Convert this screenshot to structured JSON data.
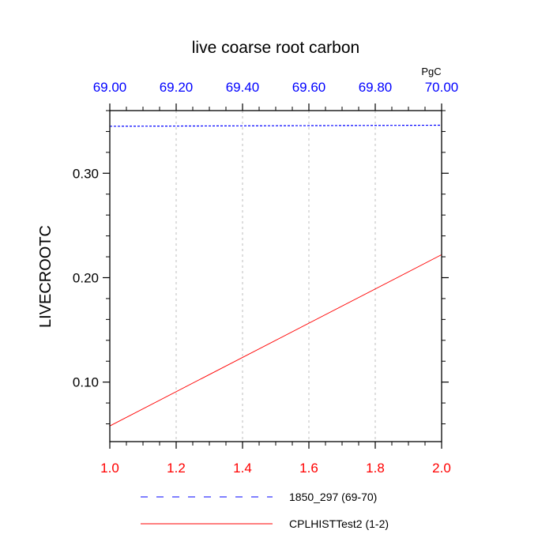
{
  "chart_data": {
    "type": "line",
    "title": "live coarse root carbon",
    "ylabel": "LIVECROOTC",
    "top_axis_units": "PgC",
    "ylim": [
      0.043,
      0.36
    ],
    "bottom_axis": {
      "range": [
        1.0,
        2.0
      ],
      "ticks": [
        1.0,
        1.2,
        1.4,
        1.6,
        1.8,
        2.0
      ],
      "tick_labels": [
        "1.0",
        "1.2",
        "1.4",
        "1.6",
        "1.8",
        "2.0"
      ],
      "color": "#ff0000"
    },
    "top_axis": {
      "range": [
        69.0,
        70.0
      ],
      "ticks": [
        69.0,
        69.2,
        69.4,
        69.6,
        69.8,
        70.0
      ],
      "tick_labels": [
        "69.00",
        "69.20",
        "69.40",
        "69.60",
        "69.80",
        "70.00"
      ],
      "color": "#0000ff"
    },
    "y_ticks": [
      0.1,
      0.2,
      0.3
    ],
    "y_tick_labels": [
      "0.10",
      "0.20",
      "0.30"
    ],
    "grid": true,
    "legend_placement": "bottom",
    "series": [
      {
        "name": "1850_297 (69-70)",
        "axis": "top",
        "style": "dashed",
        "color": "#0000ff",
        "x": [
          69.0,
          70.0
        ],
        "y": [
          0.345,
          0.346
        ]
      },
      {
        "name": "CPLHISTTest2 (1-2)",
        "axis": "bottom",
        "style": "solid",
        "color": "#ff0000",
        "x": [
          1.0,
          2.0
        ],
        "y": [
          0.058,
          0.222
        ]
      }
    ]
  }
}
